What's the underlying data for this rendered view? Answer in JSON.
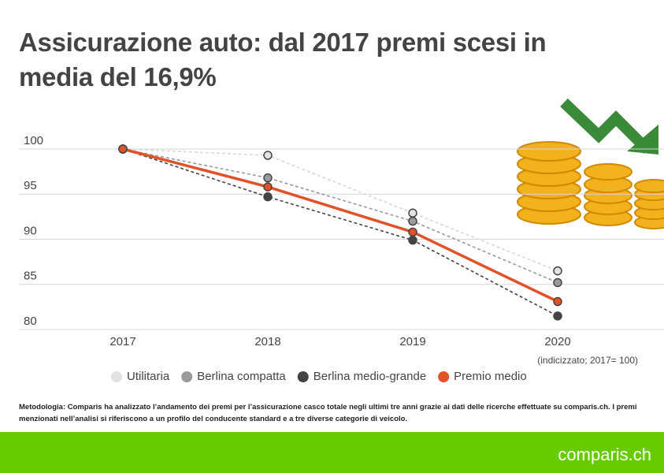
{
  "chart_data": {
    "type": "line",
    "title": "Assicurazione auto: dal 2017 premi scesi in media del 16,9%",
    "categories": [
      "2017",
      "2018",
      "2019",
      "2020"
    ],
    "ylim": [
      80,
      100
    ],
    "yticks": [
      80,
      85,
      90,
      95,
      100
    ],
    "grid": true,
    "series": [
      {
        "name": "Utilitaria",
        "color": "#e2e2e2",
        "line_style": "dashed",
        "values": [
          100,
          99.3,
          92.9,
          86.5
        ]
      },
      {
        "name": "Berlina compatta",
        "color": "#9a9a9a",
        "line_style": "dashed",
        "values": [
          100,
          96.8,
          92.0,
          85.2
        ]
      },
      {
        "name": "Berlina medio-grande",
        "color": "#444444",
        "line_style": "dashed",
        "values": [
          100,
          94.7,
          89.9,
          81.5
        ]
      },
      {
        "name": "Premio medio",
        "color": "#e0522a",
        "line_style": "solid",
        "values": [
          100,
          95.8,
          90.8,
          83.1
        ]
      }
    ],
    "note": "(indicizzato; 2017= 100)",
    "methodology": "Metodologia: Comparis ha analizzato l’andamento dei premi per l’assicurazione casco totale negli ultimi tre anni grazie ai dati delle ricerche effettuate su comparis.ch. I premi menzionati nell’analisi si riferiscono a un profilo del conducente standard e a tre diverse categorie di veicolo.",
    "logo": "comparis.ch"
  }
}
